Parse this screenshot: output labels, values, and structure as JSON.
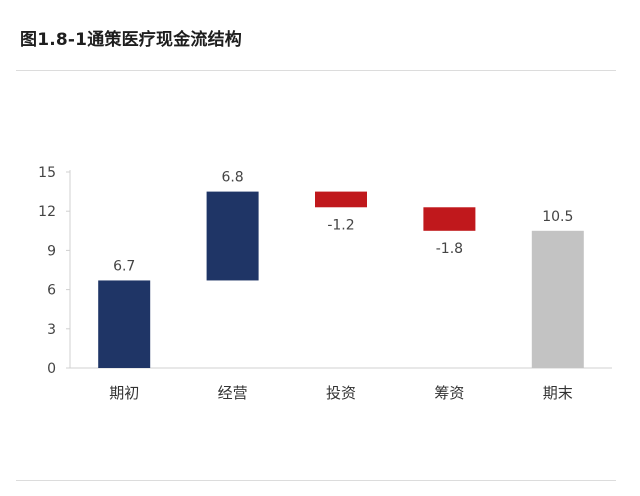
{
  "title": "图1.8-1通策医疗现金流结构",
  "chart_data": {
    "type": "bar",
    "subtype": "waterfall",
    "title": "图1.8-1通策医疗现金流结构",
    "categories": [
      "期初",
      "经营",
      "投资",
      "筹资",
      "期末"
    ],
    "values": [
      6.7,
      6.8,
      -1.2,
      -1.8,
      10.5
    ],
    "value_labels": [
      "6.7",
      "6.8",
      "-1.2",
      "-1.8",
      "10.5"
    ],
    "bar_kinds": [
      "total",
      "delta",
      "delta",
      "delta",
      "total"
    ],
    "ylim": [
      0,
      15
    ],
    "yticks": [
      0,
      3,
      6,
      9,
      12,
      15
    ],
    "ytick_labels": [
      "0",
      "3",
      "6",
      "9",
      "12",
      "15"
    ],
    "xlabel": "",
    "ylabel": "",
    "grid": false,
    "legend": "none",
    "colors": {
      "start": "#1f3566",
      "increase": "#1f3566",
      "decrease": "#c0181c",
      "end": "#c3c3c3",
      "axis": "#d0d0d0"
    }
  }
}
